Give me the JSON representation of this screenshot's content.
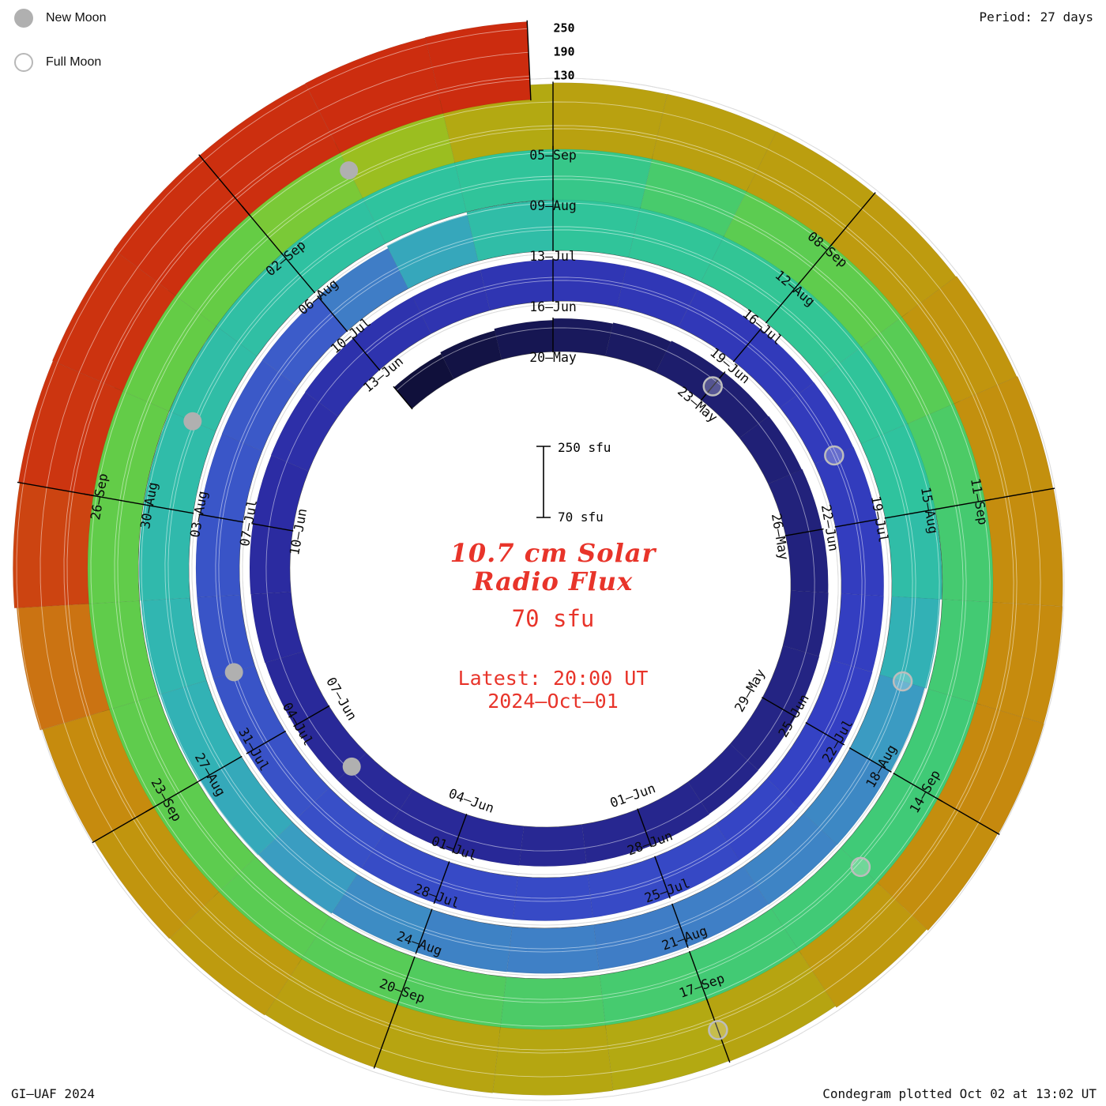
{
  "header": {
    "period": "Period: 27 days"
  },
  "legend": {
    "new_moon": "New Moon",
    "full_moon": "Full Moon"
  },
  "footer": {
    "credit": "GI–UAF 2024",
    "plotted": "Condegram plotted Oct 02 at 13:02 UT"
  },
  "center": {
    "title_line1": "10.7 cm Solar",
    "title_line2": "Radio Flux",
    "flux_value": "70 sfu",
    "latest_line1": "Latest: 20:00 UT",
    "latest_line2": "2024–Oct–01"
  },
  "chart_data": {
    "type": "bar",
    "variant": "condegram-polar-spiral",
    "title": "10.7 cm Solar Radio Flux",
    "period_days": 27,
    "direction": "clockwise",
    "start_angle_deg": -90,
    "units": "sfu",
    "flux_axis": {
      "base": 70,
      "gridlines": [
        70,
        130,
        190,
        250
      ]
    },
    "radial_scale_labels": [
      "250",
      "190",
      "130"
    ],
    "scale_bar": {
      "top_label": "250 sfu",
      "bottom_label": "70 sfu",
      "top_value": 250,
      "bottom_value": 70
    },
    "first_labeled_date": "20–May",
    "last_date": "2024–Oct–01",
    "date_labels": [
      {
        "t": 0,
        "text": "20–May"
      },
      {
        "t": 3,
        "text": "23–May"
      },
      {
        "t": 6,
        "text": "26–May"
      },
      {
        "t": 9,
        "text": "29–May"
      },
      {
        "t": 12,
        "text": "01–Jun"
      },
      {
        "t": 15,
        "text": "04–Jun"
      },
      {
        "t": 18,
        "text": "07–Jun"
      },
      {
        "t": 21,
        "text": "10–Jun"
      },
      {
        "t": 24,
        "text": "13–Jun"
      },
      {
        "t": 27,
        "text": "16–Jun"
      },
      {
        "t": 30,
        "text": "19–Jun"
      },
      {
        "t": 33,
        "text": "22–Jun"
      },
      {
        "t": 36,
        "text": "25–Jun"
      },
      {
        "t": 39,
        "text": "28–Jun"
      },
      {
        "t": 42,
        "text": "01–Jul"
      },
      {
        "t": 45,
        "text": "04–Jul"
      },
      {
        "t": 48,
        "text": "07–Jul"
      },
      {
        "t": 51,
        "text": "10–Jul"
      },
      {
        "t": 54,
        "text": "13–Jul"
      },
      {
        "t": 57,
        "text": "16–Jul"
      },
      {
        "t": 60,
        "text": "19–Jul"
      },
      {
        "t": 63,
        "text": "22–Jul"
      },
      {
        "t": 66,
        "text": "25–Jul"
      },
      {
        "t": 69,
        "text": "28–Jul"
      },
      {
        "t": 72,
        "text": "31–Jul"
      },
      {
        "t": 75,
        "text": "03–Aug"
      },
      {
        "t": 78,
        "text": "06–Aug"
      },
      {
        "t": 81,
        "text": "09–Aug"
      },
      {
        "t": 84,
        "text": "12–Aug"
      },
      {
        "t": 87,
        "text": "15–Aug"
      },
      {
        "t": 90,
        "text": "18–Aug"
      },
      {
        "t": 93,
        "text": "21–Aug"
      },
      {
        "t": 96,
        "text": "24–Aug"
      },
      {
        "t": 99,
        "text": "27–Aug"
      },
      {
        "t": 102,
        "text": "30–Aug"
      },
      {
        "t": 105,
        "text": "02–Sep"
      },
      {
        "t": 108,
        "text": "05–Sep"
      },
      {
        "t": 111,
        "text": "08–Sep"
      },
      {
        "t": 114,
        "text": "11–Sep"
      },
      {
        "t": 117,
        "text": "14–Sep"
      },
      {
        "t": 120,
        "text": "17–Sep"
      },
      {
        "t": 123,
        "text": "20–Sep"
      },
      {
        "t": 126,
        "text": "23–Sep"
      },
      {
        "t": 129,
        "text": "26–Sep"
      }
    ],
    "flux_anchors": [
      [
        -3,
        138
      ],
      [
        0,
        152
      ],
      [
        3,
        160
      ],
      [
        6,
        164
      ],
      [
        9,
        166
      ],
      [
        12,
        168
      ],
      [
        15,
        170
      ],
      [
        18,
        170
      ],
      [
        21,
        172
      ],
      [
        24,
        174
      ],
      [
        27,
        175
      ],
      [
        30,
        176
      ],
      [
        33,
        177
      ],
      [
        36,
        178
      ],
      [
        39,
        179
      ],
      [
        42,
        179
      ],
      [
        45,
        180
      ],
      [
        48,
        180
      ],
      [
        51,
        181
      ],
      [
        54,
        200
      ],
      [
        57,
        202
      ],
      [
        60,
        199
      ],
      [
        63,
        186
      ],
      [
        66,
        184
      ],
      [
        69,
        185
      ],
      [
        72,
        192
      ],
      [
        75,
        196
      ],
      [
        78,
        198
      ],
      [
        81,
        201
      ],
      [
        84,
        220
      ],
      [
        87,
        210
      ],
      [
        90,
        208
      ],
      [
        93,
        209
      ],
      [
        96,
        214
      ],
      [
        99,
        218
      ],
      [
        102,
        220
      ],
      [
        105,
        222
      ],
      [
        108,
        238
      ],
      [
        111,
        240
      ],
      [
        114,
        246
      ],
      [
        117,
        248
      ],
      [
        120,
        235
      ],
      [
        123,
        238
      ],
      [
        126,
        244
      ],
      [
        129,
        262
      ],
      [
        132,
        266
      ],
      [
        134.8,
        268
      ]
    ],
    "flux_color_scale": [
      [
        130,
        "#0a0a26"
      ],
      [
        145,
        "#131345"
      ],
      [
        155,
        "#1a1a60"
      ],
      [
        165,
        "#232380"
      ],
      [
        172,
        "#2b2ba2"
      ],
      [
        178,
        "#3440c4"
      ],
      [
        181,
        "#3c5ec9"
      ],
      [
        184,
        "#3f7cc6"
      ],
      [
        188,
        "#3b9ac2"
      ],
      [
        193,
        "#31b4b4"
      ],
      [
        200,
        "#2fc49c"
      ],
      [
        208,
        "#3fca78"
      ],
      [
        215,
        "#58cc55"
      ],
      [
        222,
        "#66cc44"
      ],
      [
        228,
        "#92c626"
      ],
      [
        235,
        "#b2aa12"
      ],
      [
        242,
        "#c0980e"
      ],
      [
        249,
        "#c8860e"
      ],
      [
        255,
        "#cc6a14"
      ],
      [
        260,
        "#cc3a10"
      ],
      [
        275,
        "#cc1f0e"
      ]
    ],
    "moons": [
      {
        "date": "23–May",
        "phase": "full",
        "t": 3
      },
      {
        "date": "06–Jun",
        "phase": "new",
        "t": 17
      },
      {
        "date": "21–Jun",
        "phase": "full",
        "t": 32
      },
      {
        "date": "05–Jul",
        "phase": "new",
        "t": 46
      },
      {
        "date": "21–Jul",
        "phase": "full",
        "t": 62
      },
      {
        "date": "04–Aug",
        "phase": "new",
        "t": 76
      },
      {
        "date": "19–Aug",
        "phase": "full",
        "t": 91
      },
      {
        "date": "03–Sep",
        "phase": "new",
        "t": 106
      },
      {
        "date": "17–Sep",
        "phase": "full",
        "t": 120
      }
    ]
  }
}
